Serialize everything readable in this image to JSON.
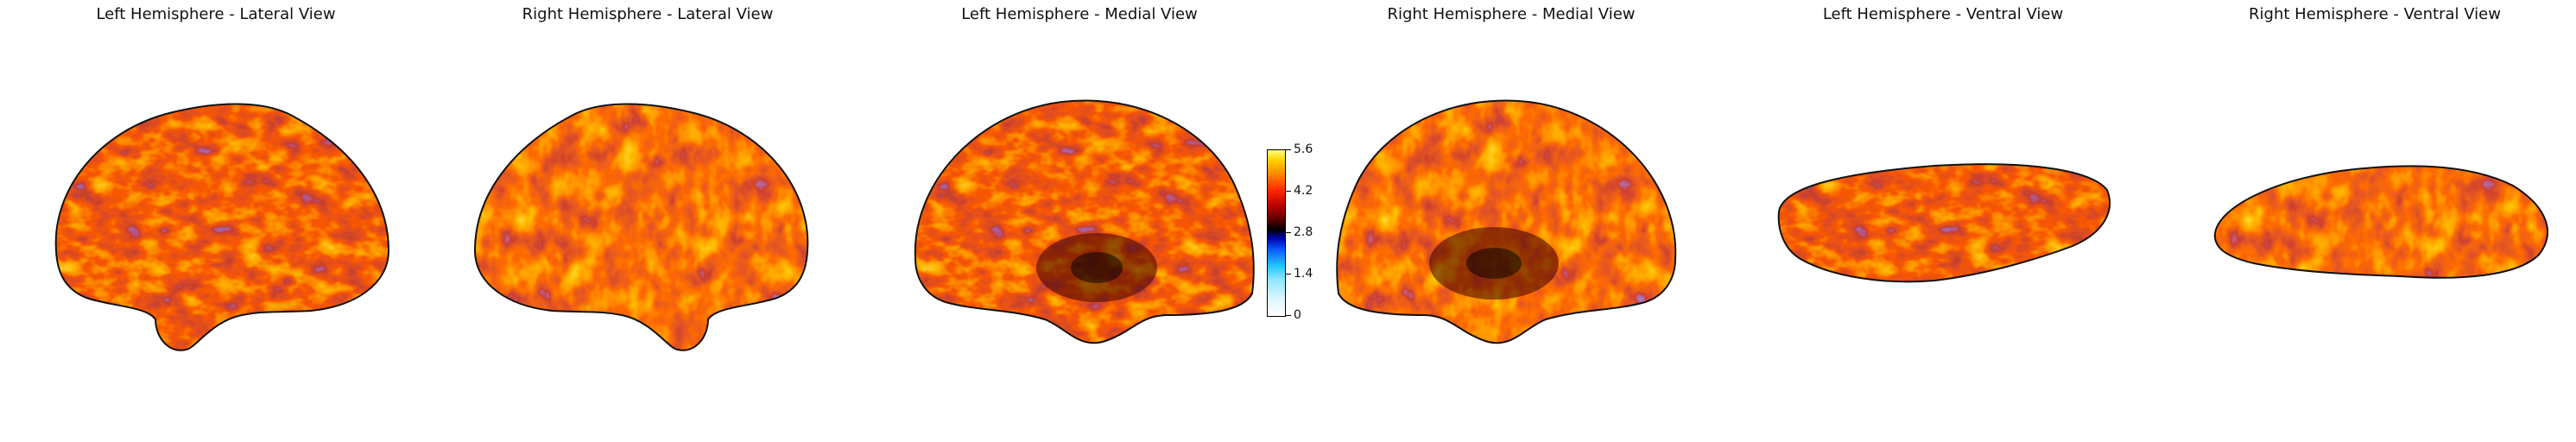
{
  "panels": [
    {
      "title": "Left Hemisphere - Lateral View"
    },
    {
      "title": "Right Hemisphere - Lateral View"
    },
    {
      "title": "Left Hemisphere - Medial View"
    },
    {
      "title": "Right Hemisphere - Medial View"
    },
    {
      "title": "Left Hemisphere - Ventral View"
    },
    {
      "title": "Right Hemisphere - Ventral View"
    }
  ],
  "colorbar": {
    "ticks": [
      "5.6",
      "4.2",
      "2.8",
      "1.4",
      "0"
    ],
    "colormap": [
      "#ffffff",
      "#24c7ff",
      "#0a5cff",
      "#000000",
      "#b30000",
      "#ff2a00",
      "#ff8c00",
      "#ffd200",
      "#ffff80"
    ]
  }
}
